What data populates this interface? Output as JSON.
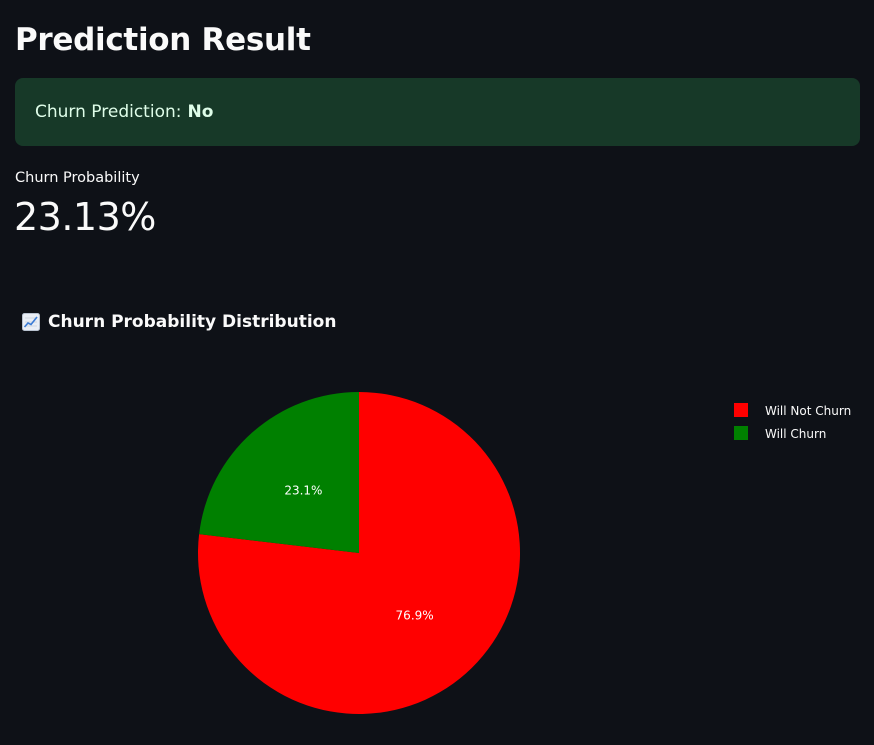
{
  "page": {
    "title": "Prediction Result"
  },
  "prediction": {
    "label": "Churn Prediction:",
    "value": "No"
  },
  "metric": {
    "label": "Churn Probability",
    "value": "23.13%"
  },
  "section": {
    "icon": "chart-increasing-icon",
    "heading": "Churn Probability Distribution"
  },
  "colors": {
    "background": "#0e1117",
    "alert_bg": "#173928",
    "will_not_churn": "#ff0000",
    "will_churn": "#008000"
  },
  "chart_data": {
    "type": "pie",
    "title": "",
    "legend_position": "top-right",
    "direction": "clockwise",
    "start_angle": "top",
    "slices": [
      {
        "name": "Will Not Churn",
        "value": 76.87,
        "label": "76.9%",
        "color": "#ff0000"
      },
      {
        "name": "Will Churn",
        "value": 23.13,
        "label": "23.1%",
        "color": "#008000"
      }
    ]
  }
}
